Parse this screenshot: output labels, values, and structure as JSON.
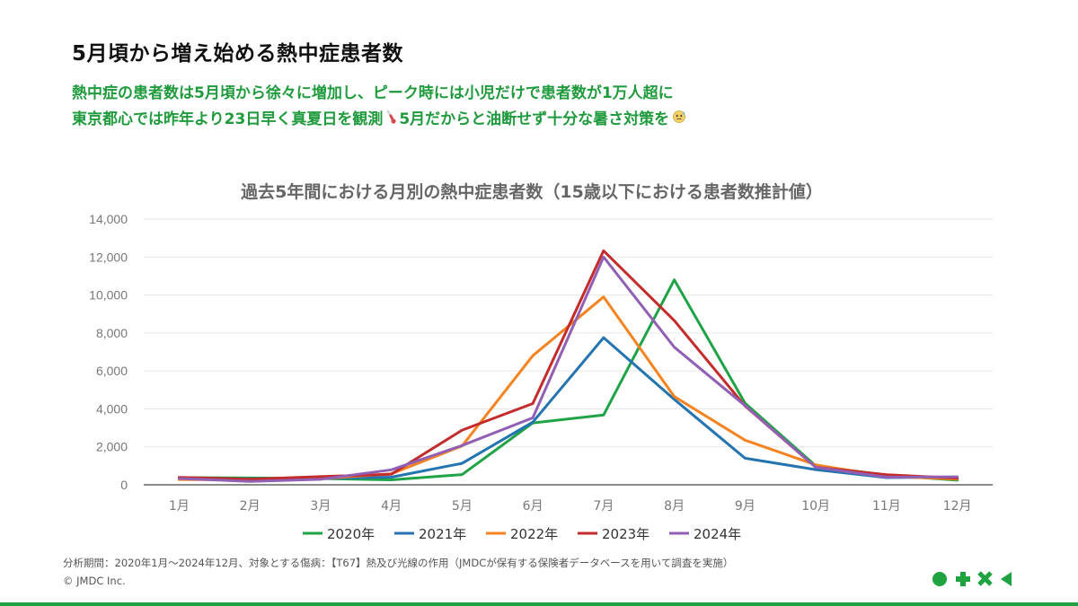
{
  "header": {
    "title": "5月頃から増え始める熱中症患者数",
    "subtitle_line1": "熱中症の患者数は5月頃から徐々に増加し、ピーク時には小児だけで患者数が1万人超に",
    "subtitle_line2a": "東京都心では昨年より23日早く真夏日を観測",
    "subtitle_line2b": "5月だからと油断せず十分な暑さ対策を",
    "icon_a": "thermometer-icon",
    "icon_b": "sweat-face-icon"
  },
  "colors": {
    "accent_green": "#1f9a3c"
  },
  "chart_data": {
    "type": "line",
    "title": "過去5年間における月別の熱中症患者数（15歳以下における患者数推計値）",
    "xlabel": "",
    "ylabel": "",
    "categories": [
      "1月",
      "2月",
      "3月",
      "4月",
      "5月",
      "6月",
      "7月",
      "8月",
      "9月",
      "10月",
      "11月",
      "12月"
    ],
    "ylim": [
      0,
      14000
    ],
    "yticks": [
      0,
      2000,
      4000,
      6000,
      8000,
      10000,
      12000,
      14000
    ],
    "ytick_labels": [
      "0",
      "2,000",
      "4,000",
      "6,000",
      "8,000",
      "10,000",
      "12,000",
      "14,000"
    ],
    "grid": true,
    "legend_position": "bottom",
    "series": [
      {
        "name": "2020年",
        "color": "#1fa346",
        "values": [
          380,
          360,
          330,
          260,
          540,
          3260,
          3680,
          10800,
          4300,
          1000,
          500,
          240
        ]
      },
      {
        "name": "2021年",
        "color": "#2374b0",
        "values": [
          320,
          310,
          330,
          400,
          1130,
          3300,
          7750,
          4500,
          1400,
          800,
          380,
          400
        ]
      },
      {
        "name": "2022年",
        "color": "#f5831f",
        "values": [
          280,
          260,
          320,
          580,
          2050,
          6800,
          9900,
          4650,
          2350,
          1050,
          450,
          300
        ]
      },
      {
        "name": "2023年",
        "color": "#c42b2b",
        "values": [
          390,
          300,
          430,
          560,
          2880,
          4280,
          12330,
          8650,
          4150,
          920,
          530,
          350
        ]
      },
      {
        "name": "2024年",
        "color": "#9160b5",
        "values": [
          330,
          180,
          290,
          790,
          2070,
          3530,
          12000,
          7250,
          4170,
          920,
          400,
          420
        ]
      }
    ]
  },
  "footer": {
    "note": "分析期間：2020年1月～2024年12月、対象とする傷病：【T67】熱及び光線の作用（JMDCが保有する保険者データベースを用いて調査を実施）",
    "copyright": "© JMDC Inc.",
    "logo_icon": "jmdc-logo-icon"
  }
}
